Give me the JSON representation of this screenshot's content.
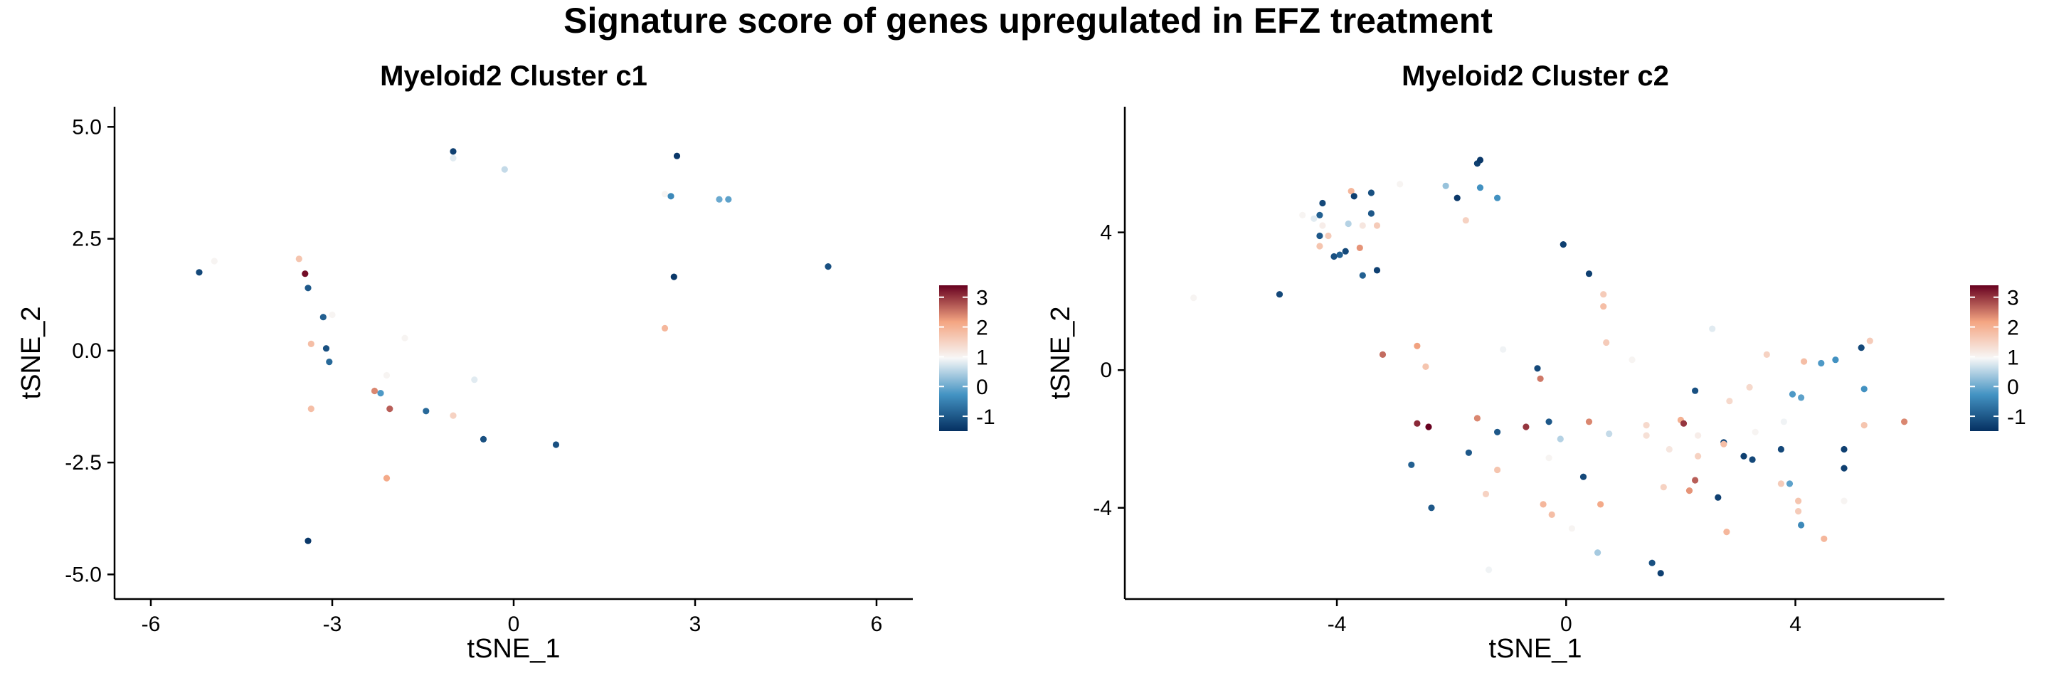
{
  "figure": {
    "title": "Signature score of genes upregulated in EFZ treatment"
  },
  "colorscale": {
    "low_color": "#053061",
    "mid_low_color": "#4393C3",
    "mid_color": "#F7F7F7",
    "mid_high_color": "#F4A582",
    "high_color": "#67001F"
  },
  "chart_data": [
    {
      "type": "scatter",
      "title": "Myeloid2 Cluster c1",
      "xlabel": "tSNE_1",
      "ylabel": "tSNE_2",
      "xlim": [
        -6.6,
        6.6
      ],
      "ylim": [
        -5.55,
        5.45
      ],
      "xticks": [
        -6,
        -3,
        0,
        3,
        6
      ],
      "xtick_labels": [
        "-6",
        "-3",
        "0",
        "3",
        "6"
      ],
      "yticks": [
        -5,
        -2.5,
        0,
        2.5,
        5
      ],
      "ytick_labels": [
        "-5.0",
        "-2.5",
        "0.0",
        "2.5",
        "5.0"
      ],
      "legend": {
        "position": "right",
        "ticks": [
          -1,
          0,
          1,
          2,
          3
        ],
        "tick_labels": [
          "-1",
          "0",
          "1",
          "2",
          "3"
        ],
        "range": [
          -1.5,
          3.4
        ]
      },
      "points": [
        {
          "x": -5.2,
          "y": 1.75,
          "v": -1.2
        },
        {
          "x": -4.95,
          "y": 2.0,
          "v": 1.0
        },
        {
          "x": -3.55,
          "y": 2.05,
          "v": 1.7
        },
        {
          "x": -3.45,
          "y": 1.72,
          "v": 3.3
        },
        {
          "x": -3.4,
          "y": 1.4,
          "v": -1.0
        },
        {
          "x": -3.15,
          "y": 0.75,
          "v": -0.9
        },
        {
          "x": -3.0,
          "y": 0.8,
          "v": 1.0
        },
        {
          "x": -3.1,
          "y": 0.05,
          "v": -1.1
        },
        {
          "x": -3.05,
          "y": -0.25,
          "v": -0.8
        },
        {
          "x": -3.35,
          "y": 0.15,
          "v": 1.8
        },
        {
          "x": -3.35,
          "y": -1.3,
          "v": 1.8
        },
        {
          "x": -3.4,
          "y": -4.25,
          "v": -1.4
        },
        {
          "x": -2.3,
          "y": -0.9,
          "v": 2.4
        },
        {
          "x": -2.2,
          "y": -0.95,
          "v": -0.2
        },
        {
          "x": -2.1,
          "y": -0.55,
          "v": 1.0
        },
        {
          "x": -2.05,
          "y": -1.3,
          "v": 2.7
        },
        {
          "x": -2.1,
          "y": -2.85,
          "v": 2.1
        },
        {
          "x": -1.8,
          "y": 0.28,
          "v": 1.0
        },
        {
          "x": -1.45,
          "y": -1.35,
          "v": -0.8
        },
        {
          "x": -1.0,
          "y": 4.45,
          "v": -1.3
        },
        {
          "x": -1.0,
          "y": 4.3,
          "v": 0.8
        },
        {
          "x": -1.0,
          "y": -1.45,
          "v": 1.5
        },
        {
          "x": -0.65,
          "y": -0.65,
          "v": 0.8
        },
        {
          "x": -0.5,
          "y": -1.98,
          "v": -1.1
        },
        {
          "x": -0.15,
          "y": 4.05,
          "v": 0.6
        },
        {
          "x": 0.7,
          "y": -2.1,
          "v": -1.1
        },
        {
          "x": 2.5,
          "y": 0.5,
          "v": 1.9
        },
        {
          "x": 2.5,
          "y": 3.5,
          "v": 1.0
        },
        {
          "x": 2.6,
          "y": 3.45,
          "v": -0.4
        },
        {
          "x": 2.7,
          "y": 4.35,
          "v": -1.4
        },
        {
          "x": 2.65,
          "y": 1.65,
          "v": -1.4
        },
        {
          "x": 3.4,
          "y": 3.38,
          "v": 0.0
        },
        {
          "x": 3.55,
          "y": 3.38,
          "v": -0.1
        },
        {
          "x": 5.2,
          "y": 1.88,
          "v": -1.1
        }
      ]
    },
    {
      "type": "scatter",
      "title": "Myeloid2 Cluster c2",
      "xlabel": "tSNE_1",
      "ylabel": "tSNE_2",
      "xlim": [
        -7.7,
        6.6
      ],
      "ylim": [
        -6.65,
        7.65
      ],
      "xticks": [
        -4,
        0,
        4
      ],
      "xtick_labels": [
        "-4",
        "0",
        "4"
      ],
      "yticks": [
        -4,
        0,
        4
      ],
      "ytick_labels": [
        "-4",
        "0",
        "4"
      ],
      "legend": {
        "position": "right",
        "ticks": [
          -1,
          0,
          1,
          2,
          3
        ],
        "tick_labels": [
          "-1",
          "0",
          "1",
          "2",
          "3"
        ],
        "range": [
          -1.5,
          3.4
        ]
      },
      "points": [
        {
          "x": -6.5,
          "y": 2.1,
          "v": 1.0
        },
        {
          "x": -5.0,
          "y": 2.2,
          "v": -1.2
        },
        {
          "x": -4.6,
          "y": 4.5,
          "v": 1.0
        },
        {
          "x": -4.4,
          "y": 4.4,
          "v": 0.8
        },
        {
          "x": -4.3,
          "y": 4.5,
          "v": -0.9
        },
        {
          "x": -4.25,
          "y": 4.85,
          "v": -1.2
        },
        {
          "x": -4.25,
          "y": 4.2,
          "v": 1.1
        },
        {
          "x": -4.15,
          "y": 3.9,
          "v": 1.6
        },
        {
          "x": -4.3,
          "y": 3.6,
          "v": 1.7
        },
        {
          "x": -4.3,
          "y": 3.9,
          "v": -1.0
        },
        {
          "x": -4.05,
          "y": 3.3,
          "v": -1.1
        },
        {
          "x": -3.95,
          "y": 3.35,
          "v": -0.9
        },
        {
          "x": -3.85,
          "y": 3.45,
          "v": -1.2
        },
        {
          "x": -3.75,
          "y": 5.2,
          "v": 1.9
        },
        {
          "x": -3.7,
          "y": 5.05,
          "v": -1.3
        },
        {
          "x": -3.8,
          "y": 4.25,
          "v": 0.5
        },
        {
          "x": -3.6,
          "y": 3.55,
          "v": 2.3
        },
        {
          "x": -3.55,
          "y": 2.75,
          "v": -0.9
        },
        {
          "x": -3.4,
          "y": 5.15,
          "v": -1.1
        },
        {
          "x": -3.4,
          "y": 4.55,
          "v": -1.0
        },
        {
          "x": -3.3,
          "y": 4.2,
          "v": 1.6
        },
        {
          "x": -3.3,
          "y": 2.9,
          "v": -1.3
        },
        {
          "x": -3.55,
          "y": 4.2,
          "v": 1.2
        },
        {
          "x": -3.2,
          "y": 0.45,
          "v": 2.6
        },
        {
          "x": -2.9,
          "y": 5.4,
          "v": 1.0
        },
        {
          "x": -2.7,
          "y": -2.75,
          "v": -0.9
        },
        {
          "x": -2.6,
          "y": 0.7,
          "v": 2.2
        },
        {
          "x": -2.6,
          "y": -1.55,
          "v": 3.1
        },
        {
          "x": -2.45,
          "y": 0.1,
          "v": 1.7
        },
        {
          "x": -2.4,
          "y": -1.65,
          "v": 3.4
        },
        {
          "x": -2.35,
          "y": -4.0,
          "v": -1.0
        },
        {
          "x": -2.1,
          "y": 5.35,
          "v": 0.3
        },
        {
          "x": -1.9,
          "y": 5.0,
          "v": -1.4
        },
        {
          "x": -1.75,
          "y": 4.35,
          "v": 1.5
        },
        {
          "x": -1.7,
          "y": -2.4,
          "v": -1.0
        },
        {
          "x": -1.55,
          "y": -1.4,
          "v": 2.4
        },
        {
          "x": -1.55,
          "y": 6.0,
          "v": -1.3
        },
        {
          "x": -1.5,
          "y": 6.1,
          "v": -1.4
        },
        {
          "x": -1.5,
          "y": 5.3,
          "v": -0.3
        },
        {
          "x": -1.4,
          "y": -3.6,
          "v": 1.5
        },
        {
          "x": -1.35,
          "y": -5.8,
          "v": 0.9
        },
        {
          "x": -1.2,
          "y": 5.0,
          "v": -0.3
        },
        {
          "x": -1.2,
          "y": -1.8,
          "v": -1.0
        },
        {
          "x": -1.2,
          "y": -2.9,
          "v": 1.7
        },
        {
          "x": -1.1,
          "y": 0.6,
          "v": 0.9
        },
        {
          "x": -0.7,
          "y": -1.65,
          "v": 3.0
        },
        {
          "x": -0.5,
          "y": 0.05,
          "v": -1.2
        },
        {
          "x": -0.45,
          "y": -0.25,
          "v": 2.5
        },
        {
          "x": -0.4,
          "y": -3.9,
          "v": 1.9
        },
        {
          "x": -0.3,
          "y": -1.5,
          "v": -1.0
        },
        {
          "x": -0.3,
          "y": -2.55,
          "v": 1.0
        },
        {
          "x": -0.25,
          "y": -4.2,
          "v": 1.8
        },
        {
          "x": -0.1,
          "y": -2.0,
          "v": 0.5
        },
        {
          "x": -0.05,
          "y": 3.65,
          "v": -1.3
        },
        {
          "x": 0.1,
          "y": -4.6,
          "v": 1.0
        },
        {
          "x": 0.3,
          "y": -3.1,
          "v": -1.2
        },
        {
          "x": 0.4,
          "y": 2.8,
          "v": -1.3
        },
        {
          "x": 0.4,
          "y": -1.5,
          "v": 2.4
        },
        {
          "x": 0.55,
          "y": -5.3,
          "v": 0.4
        },
        {
          "x": 0.6,
          "y": -3.9,
          "v": 2.1
        },
        {
          "x": 0.65,
          "y": 2.2,
          "v": 1.6
        },
        {
          "x": 0.65,
          "y": 1.85,
          "v": 1.8
        },
        {
          "x": 0.7,
          "y": 0.8,
          "v": 1.6
        },
        {
          "x": 0.75,
          "y": -1.85,
          "v": 0.6
        },
        {
          "x": 1.15,
          "y": 0.3,
          "v": 1.0
        },
        {
          "x": 1.4,
          "y": -1.6,
          "v": 1.4
        },
        {
          "x": 1.4,
          "y": -1.9,
          "v": 1.3
        },
        {
          "x": 1.5,
          "y": -5.6,
          "v": -1.1
        },
        {
          "x": 1.65,
          "y": -5.9,
          "v": -1.3
        },
        {
          "x": 1.7,
          "y": -3.4,
          "v": 1.5
        },
        {
          "x": 1.8,
          "y": -2.3,
          "v": 1.2
        },
        {
          "x": 2.0,
          "y": -1.45,
          "v": 2.0
        },
        {
          "x": 2.05,
          "y": -1.55,
          "v": 3.0
        },
        {
          "x": 2.15,
          "y": -3.5,
          "v": 2.3
        },
        {
          "x": 2.25,
          "y": -3.2,
          "v": 2.7
        },
        {
          "x": 2.25,
          "y": -0.6,
          "v": -1.1
        },
        {
          "x": 2.3,
          "y": -2.5,
          "v": 1.5
        },
        {
          "x": 2.3,
          "y": -1.9,
          "v": 1.1
        },
        {
          "x": 2.55,
          "y": 1.2,
          "v": 0.8
        },
        {
          "x": 2.65,
          "y": -3.7,
          "v": -1.3
        },
        {
          "x": 2.75,
          "y": -2.1,
          "v": -1.2
        },
        {
          "x": 2.75,
          "y": -2.15,
          "v": 1.8
        },
        {
          "x": 2.8,
          "y": -4.7,
          "v": 1.9
        },
        {
          "x": 2.85,
          "y": -0.9,
          "v": 1.4
        },
        {
          "x": 3.1,
          "y": -2.5,
          "v": -1.3
        },
        {
          "x": 3.25,
          "y": -2.6,
          "v": -1.2
        },
        {
          "x": 3.2,
          "y": -0.5,
          "v": 1.4
        },
        {
          "x": 3.3,
          "y": -1.8,
          "v": 1.0
        },
        {
          "x": 3.5,
          "y": 0.45,
          "v": 1.5
        },
        {
          "x": 3.75,
          "y": -2.3,
          "v": -1.2
        },
        {
          "x": 3.75,
          "y": -3.3,
          "v": 1.6
        },
        {
          "x": 3.8,
          "y": -1.5,
          "v": 0.9
        },
        {
          "x": 3.95,
          "y": -0.7,
          "v": -0.2
        },
        {
          "x": 3.9,
          "y": -3.3,
          "v": -0.1
        },
        {
          "x": 4.05,
          "y": -3.8,
          "v": 1.7
        },
        {
          "x": 4.05,
          "y": -4.1,
          "v": 1.6
        },
        {
          "x": 4.1,
          "y": -0.8,
          "v": -0.1
        },
        {
          "x": 4.1,
          "y": -4.5,
          "v": -0.4
        },
        {
          "x": 4.15,
          "y": 0.25,
          "v": 1.8
        },
        {
          "x": 4.45,
          "y": 0.2,
          "v": -0.2
        },
        {
          "x": 4.5,
          "y": -4.9,
          "v": 1.9
        },
        {
          "x": 4.7,
          "y": 0.3,
          "v": -0.3
        },
        {
          "x": 4.85,
          "y": -2.3,
          "v": -1.3
        },
        {
          "x": 4.85,
          "y": -2.85,
          "v": -1.3
        },
        {
          "x": 4.85,
          "y": -3.8,
          "v": 1.0
        },
        {
          "x": 5.15,
          "y": 0.65,
          "v": -1.2
        },
        {
          "x": 5.2,
          "y": -0.55,
          "v": -0.3
        },
        {
          "x": 5.2,
          "y": -1.6,
          "v": 1.7
        },
        {
          "x": 5.3,
          "y": 0.85,
          "v": 1.6
        },
        {
          "x": 5.9,
          "y": -1.5,
          "v": 2.4
        }
      ]
    }
  ]
}
